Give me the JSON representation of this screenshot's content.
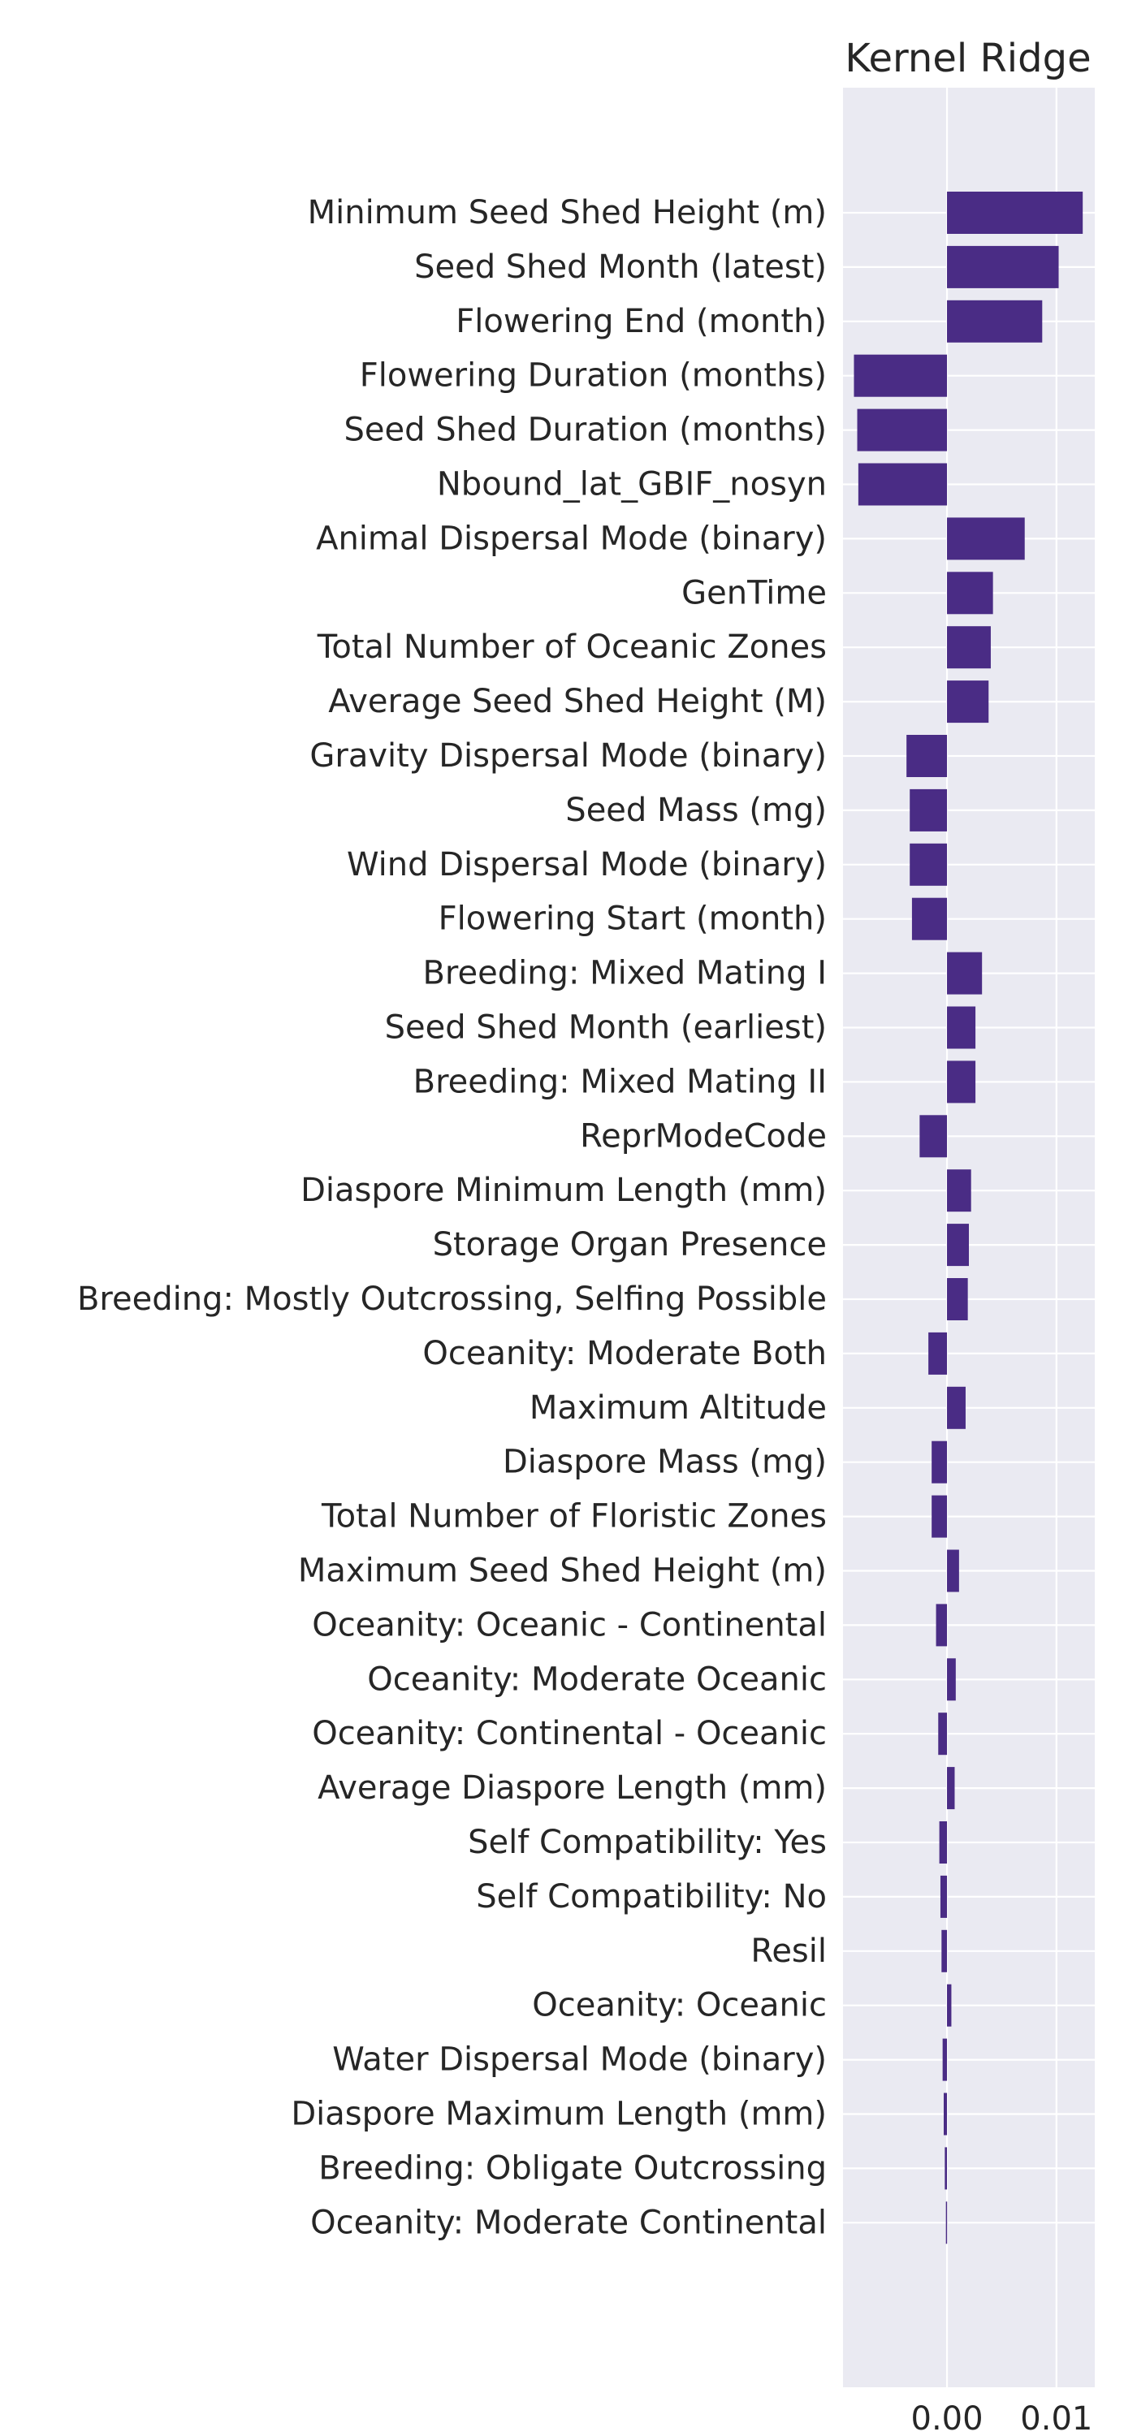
{
  "chart_data": {
    "type": "bar",
    "orientation": "horizontal",
    "title": "Kernel Ridge",
    "xlabel": "",
    "ylabel": "",
    "xlim": [
      -0.0095,
      0.0135
    ],
    "xticks": [
      0.0,
      0.01
    ],
    "xtick_labels": [
      "0.00",
      "0.01"
    ],
    "grid": true,
    "legend": "none",
    "style": {
      "bar_color": "#4a2c85",
      "plot_background": "#eaeaf2",
      "grid_color": "#ffffff",
      "text_color": "#262626"
    },
    "categories": [
      "Minimum Seed Shed Height (m)",
      "Seed Shed Month (latest)",
      "Flowering End (month)",
      "Flowering Duration (months)",
      "Seed Shed Duration (months)",
      "Nbound_lat_GBIF_nosyn",
      "Animal Dispersal Mode (binary)",
      "GenTime",
      "Total Number of Oceanic Zones",
      "Average Seed Shed Height (M)",
      "Gravity Dispersal Mode (binary)",
      "Seed Mass (mg)",
      "Wind Dispersal Mode (binary)",
      "Flowering Start (month)",
      "Breeding: Mixed Mating I",
      "Seed Shed Month (earliest)",
      "Breeding: Mixed Mating II",
      "ReprModeCode",
      "Diaspore Minimum Length (mm)",
      "Storage Organ Presence",
      "Breeding: Mostly Outcrossing, Selfing Possible",
      "Oceanity: Moderate Both",
      "Maximum Altitude",
      "Diaspore Mass (mg)",
      "Total Number of Floristic Zones",
      "Maximum Seed Shed Height (m)",
      "Oceanity: Oceanic - Continental",
      "Oceanity: Moderate Oceanic",
      "Oceanity: Continental - Oceanic",
      "Average Diaspore Length (mm)",
      "Self Compatibility: Yes",
      "Self Compatibility: No",
      "Resil",
      "Oceanity: Oceanic",
      "Water Dispersal Mode (binary)",
      "Diaspore Maximum Length (mm)",
      "Breeding: Obligate Outcrossing",
      "Oceanity: Moderate Continental"
    ],
    "values": [
      0.0124,
      0.0102,
      0.0087,
      -0.0085,
      -0.0082,
      -0.0081,
      0.0071,
      0.0042,
      0.004,
      0.0038,
      -0.0037,
      -0.0034,
      -0.0034,
      -0.0032,
      0.0032,
      0.0026,
      0.0026,
      -0.0025,
      0.0022,
      0.002,
      0.0019,
      -0.0017,
      0.0017,
      -0.0014,
      -0.0014,
      0.0011,
      -0.001,
      0.0008,
      -0.0008,
      0.0007,
      -0.0007,
      -0.0006,
      -0.0005,
      0.0004,
      -0.0004,
      -0.0003,
      -0.0002,
      -0.0001
    ]
  }
}
